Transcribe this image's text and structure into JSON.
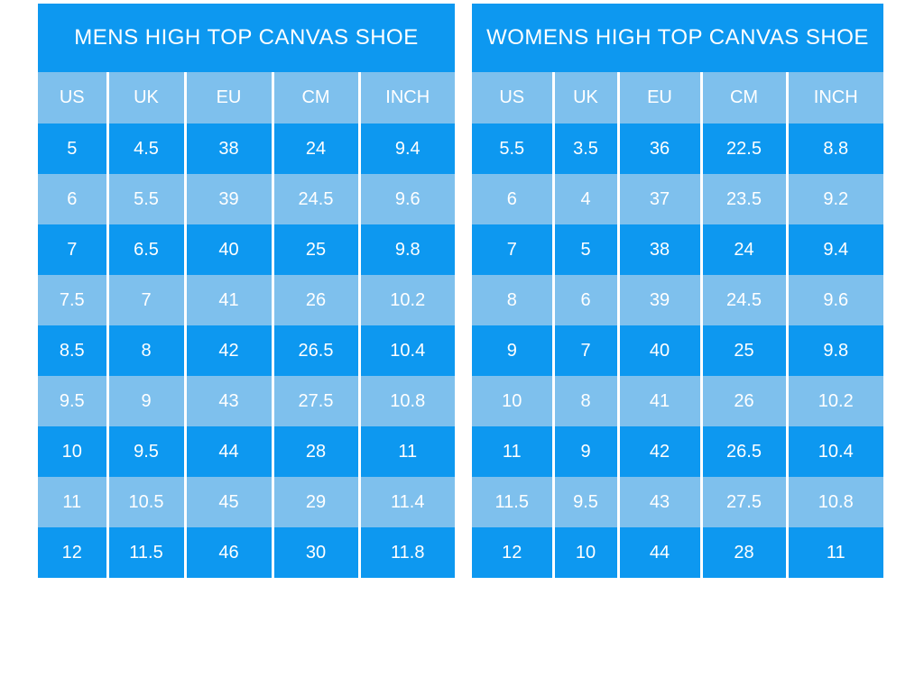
{
  "colors": {
    "row_dark": "#0d98f0",
    "row_light": "#7ec0ed",
    "text": "#ffffff",
    "page_background": "#ffffff"
  },
  "chart_data": [
    {
      "type": "table",
      "title": "MENS HIGH TOP CANVAS SHOE",
      "columns": [
        "US",
        "UK",
        "EU",
        "CM",
        "INCH"
      ],
      "rows": [
        [
          "5",
          "4.5",
          "38",
          "24",
          "9.4"
        ],
        [
          "6",
          "5.5",
          "39",
          "24.5",
          "9.6"
        ],
        [
          "7",
          "6.5",
          "40",
          "25",
          "9.8"
        ],
        [
          "7.5",
          "7",
          "41",
          "26",
          "10.2"
        ],
        [
          "8.5",
          "8",
          "42",
          "26.5",
          "10.4"
        ],
        [
          "9.5",
          "9",
          "43",
          "27.5",
          "10.8"
        ],
        [
          "10",
          "9.5",
          "44",
          "28",
          "11"
        ],
        [
          "11",
          "10.5",
          "45",
          "29",
          "11.4"
        ],
        [
          "12",
          "11.5",
          "46",
          "30",
          "11.8"
        ]
      ]
    },
    {
      "type": "table",
      "title": "WOMENS HIGH TOP CANVAS SHOE",
      "columns": [
        "US",
        "UK",
        "EU",
        "CM",
        "INCH"
      ],
      "rows": [
        [
          "5.5",
          "3.5",
          "36",
          "22.5",
          "8.8"
        ],
        [
          "6",
          "4",
          "37",
          "23.5",
          "9.2"
        ],
        [
          "7",
          "5",
          "38",
          "24",
          "9.4"
        ],
        [
          "8",
          "6",
          "39",
          "24.5",
          "9.6"
        ],
        [
          "9",
          "7",
          "40",
          "25",
          "9.8"
        ],
        [
          "10",
          "8",
          "41",
          "26",
          "10.2"
        ],
        [
          "11",
          "9",
          "42",
          "26.5",
          "10.4"
        ],
        [
          "11.5",
          "9.5",
          "43",
          "27.5",
          "10.8"
        ],
        [
          "12",
          "10",
          "44",
          "28",
          "11"
        ]
      ]
    }
  ]
}
